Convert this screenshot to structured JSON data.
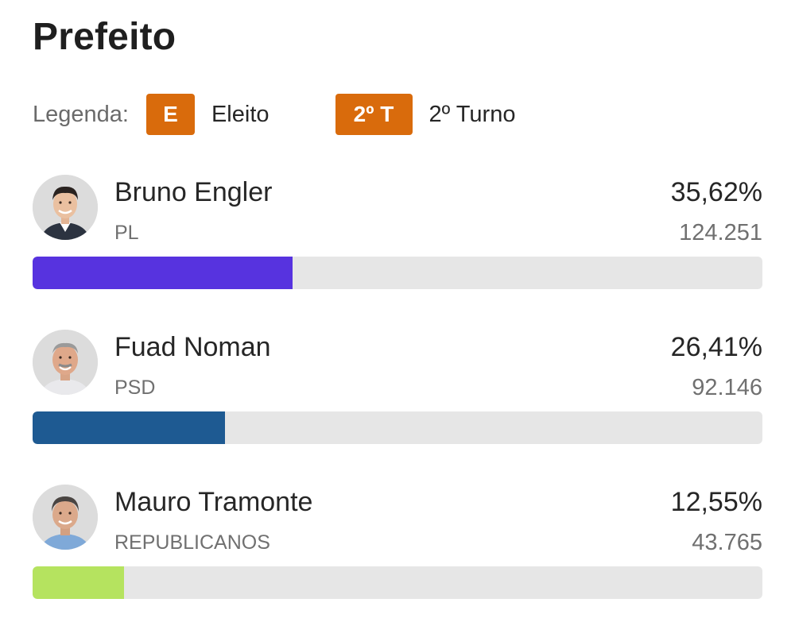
{
  "header": {
    "title": "Prefeito"
  },
  "legend": {
    "label": "Legenda:",
    "items": [
      {
        "badge": "E",
        "text": "Eleito"
      },
      {
        "badge": "2º T",
        "text": "2º Turno"
      }
    ],
    "badge_color": "#d96b0c"
  },
  "candidates": [
    {
      "name": "Bruno Engler",
      "party": "PL",
      "percent_label": "35,62%",
      "votes_label": "124.251",
      "percent": 35.62,
      "bar_color": "#5733df",
      "avatar_icon": "person-photo-icon"
    },
    {
      "name": "Fuad Noman",
      "party": "PSD",
      "percent_label": "26,41%",
      "votes_label": "92.146",
      "percent": 26.41,
      "bar_color": "#1e5a92",
      "avatar_icon": "person-photo-icon"
    },
    {
      "name": "Mauro Tramonte",
      "party": "REPUBLICANOS",
      "percent_label": "12,55%",
      "votes_label": "43.765",
      "percent": 12.55,
      "bar_color": "#b5e35f",
      "avatar_icon": "person-photo-icon"
    }
  ]
}
